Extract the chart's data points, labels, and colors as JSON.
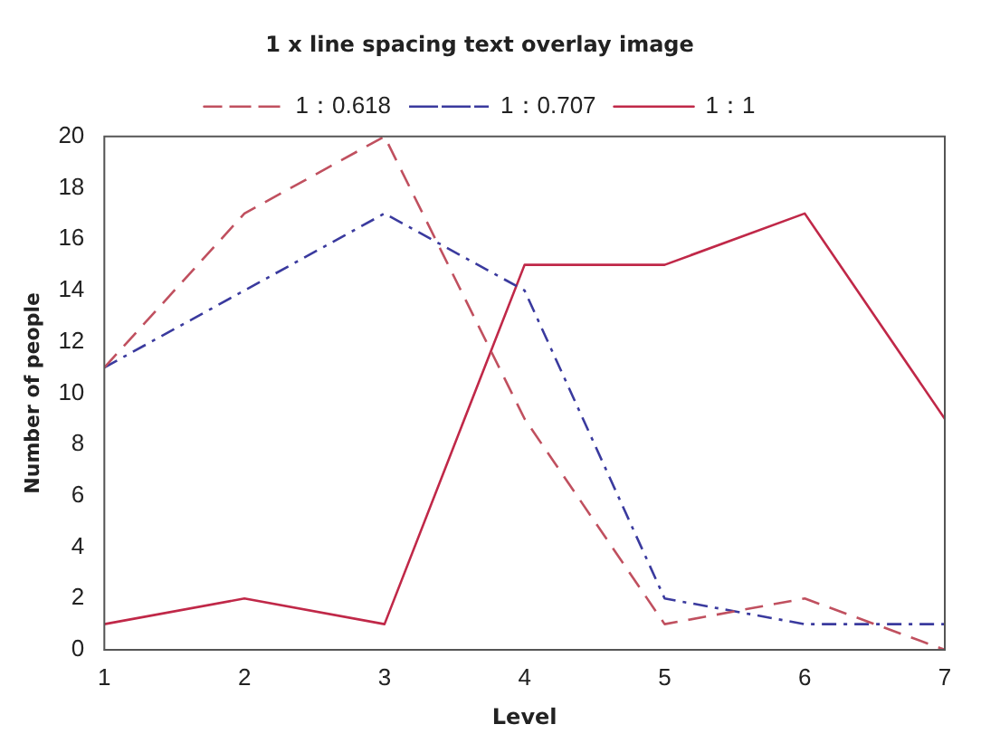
{
  "chart_data": {
    "type": "line",
    "title": "1 x line spacing text overlay image",
    "xlabel": "Level",
    "ylabel": "Number of people",
    "x": [
      1,
      2,
      3,
      4,
      5,
      6,
      7
    ],
    "series": [
      {
        "name": "1：0.618",
        "color": "#c0505f",
        "line_style": "dashed",
        "values": [
          11,
          17,
          20,
          9,
          1,
          2,
          0
        ]
      },
      {
        "name": "1：0.707",
        "color": "#3a3a9e",
        "line_style": "dashdot",
        "values": [
          11,
          14,
          17,
          14,
          2,
          1,
          1
        ]
      },
      {
        "name": "1：1",
        "color": "#c02848",
        "line_style": "solid",
        "values": [
          1,
          2,
          1,
          15,
          15,
          17,
          9
        ]
      }
    ],
    "xlim": [
      1,
      7
    ],
    "xticks": [
      1,
      2,
      3,
      4,
      5,
      6,
      7
    ],
    "ylim": [
      0,
      20
    ],
    "yticks": [
      0,
      2,
      4,
      6,
      8,
      10,
      12,
      14,
      16,
      18,
      20
    ],
    "grid": false,
    "legend": "top",
    "marker": "none"
  }
}
